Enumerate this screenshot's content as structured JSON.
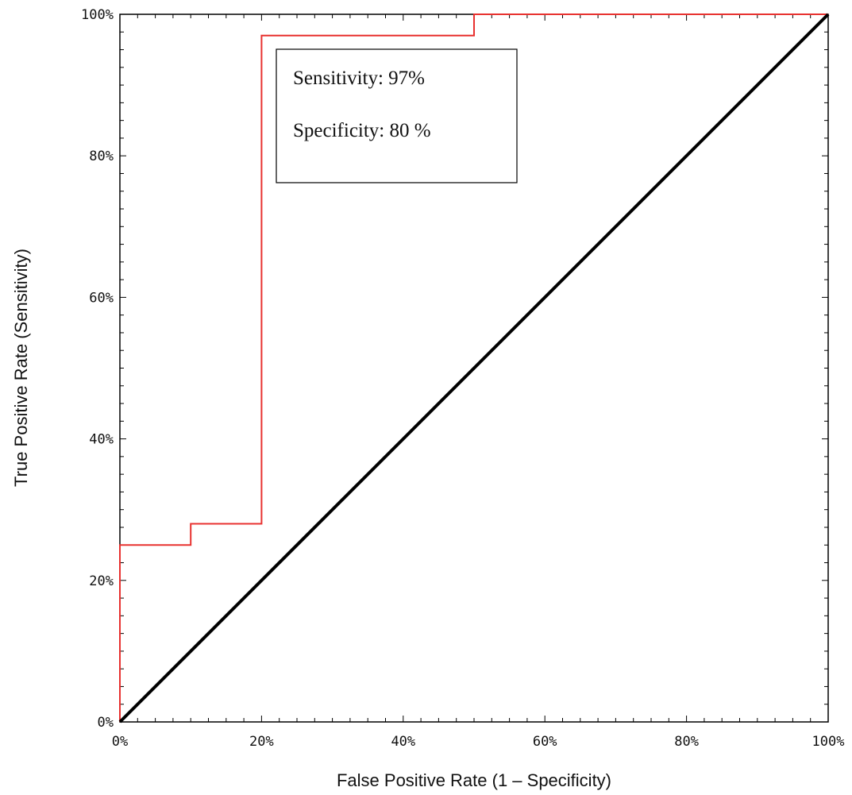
{
  "chart_data": {
    "type": "line",
    "title": "",
    "xlabel": "False Positive Rate (1 – Specificity)",
    "ylabel": "True Positive Rate (Sensitivity)",
    "xlim": [
      0,
      100
    ],
    "ylim": [
      0,
      100
    ],
    "x_ticks": [
      "0%",
      "20%",
      "40%",
      "60%",
      "80%",
      "100%"
    ],
    "y_ticks": [
      "0%",
      "20%",
      "40%",
      "60%",
      "80%",
      "100%"
    ],
    "grid": false,
    "series": [
      {
        "color": "#e8312f",
        "x": [
          0,
          0,
          10,
          10,
          20,
          20,
          50,
          50,
          100
        ],
        "y": [
          0,
          25,
          25,
          28,
          28,
          97,
          97,
          100,
          100
        ]
      },
      {
        "color": "#000000",
        "x": [
          0,
          100
        ],
        "y": [
          0,
          100
        ]
      }
    ],
    "annotations": [
      "Sensitivity: 97%",
      "Specificity: 80 %"
    ]
  }
}
